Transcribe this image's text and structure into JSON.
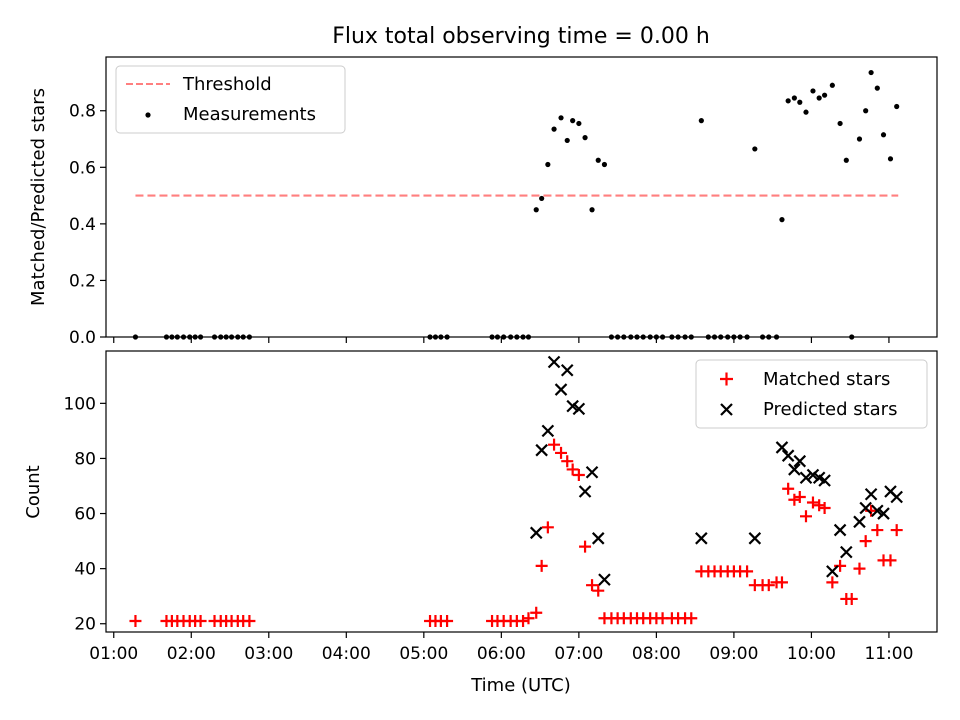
{
  "title": "Flux total observing time = 0.00 h",
  "chart_data": [
    {
      "type": "scatter",
      "ylabel": "Matched/Predicted stars",
      "xlim": [
        0.9,
        11.62
      ],
      "ylim": [
        0.0,
        0.99
      ],
      "yticks": [
        0.0,
        0.2,
        0.4,
        0.6,
        0.8
      ],
      "ytick_labels": [
        "0.0",
        "0.2",
        "0.4",
        "0.6",
        "0.8"
      ],
      "legend_position": "top-left",
      "threshold": {
        "name": "Threshold",
        "y": 0.5,
        "x": [
          1.28,
          11.12
        ],
        "color": "#ff7f7f"
      },
      "series": [
        {
          "name": "Measurements",
          "color": "#000000",
          "x": [
            1.28,
            1.68,
            1.75,
            1.82,
            1.9,
            1.98,
            2.05,
            2.12,
            2.3,
            2.38,
            2.45,
            2.52,
            2.6,
            2.67,
            2.75,
            5.08,
            5.15,
            5.22,
            5.3,
            5.88,
            5.95,
            6.03,
            6.12,
            6.2,
            6.28,
            6.35,
            6.45,
            6.52,
            6.6,
            6.68,
            6.77,
            6.85,
            6.92,
            7.0,
            7.08,
            7.17,
            7.25,
            7.33,
            7.42,
            7.5,
            7.58,
            7.67,
            7.75,
            7.83,
            7.92,
            8.0,
            8.08,
            8.2,
            8.28,
            8.37,
            8.45,
            8.58,
            8.67,
            8.75,
            8.83,
            8.92,
            9.0,
            9.08,
            9.17,
            9.27,
            9.37,
            9.45,
            9.55,
            9.62,
            9.7,
            9.78,
            9.85,
            9.93,
            10.02,
            10.1,
            10.17,
            10.27,
            10.37,
            10.45,
            10.52,
            10.62,
            10.7,
            10.77,
            10.85,
            10.93,
            11.02,
            11.1
          ],
          "y": [
            0,
            0,
            0,
            0,
            0,
            0,
            0,
            0,
            0,
            0,
            0,
            0,
            0,
            0,
            0,
            0,
            0,
            0,
            0,
            0,
            0,
            0,
            0,
            0,
            0,
            0,
            0.45,
            0.49,
            0.61,
            0.735,
            0.775,
            0.695,
            0.765,
            0.755,
            0.705,
            0.45,
            0.625,
            0.61,
            0,
            0,
            0,
            0,
            0,
            0,
            0,
            0,
            0,
            0,
            0,
            0,
            0,
            0.765,
            0,
            0,
            0,
            0,
            0,
            0,
            0,
            0.665,
            0,
            0,
            0,
            0.415,
            0.835,
            0.845,
            0.83,
            0.795,
            0.87,
            0.845,
            0.855,
            0.89,
            0.755,
            0.625,
            0,
            0.7,
            0.8,
            0.935,
            0.88,
            0.715,
            0.63,
            0.815
          ]
        }
      ]
    },
    {
      "type": "scatter",
      "xlabel": "Time (UTC)",
      "ylabel": "Count",
      "xlim": [
        0.9,
        11.62
      ],
      "ylim": [
        17,
        119
      ],
      "xticks": [
        1,
        2,
        3,
        4,
        5,
        6,
        7,
        8,
        9,
        10,
        11
      ],
      "xtick_labels": [
        "01:00",
        "02:00",
        "03:00",
        "04:00",
        "05:00",
        "06:00",
        "07:00",
        "08:00",
        "09:00",
        "10:00",
        "11:00"
      ],
      "yticks": [
        20,
        40,
        60,
        80,
        100
      ],
      "ytick_labels": [
        "20",
        "40",
        "60",
        "80",
        "100"
      ],
      "legend_position": "top-right",
      "series": [
        {
          "name": "Matched stars",
          "marker": "plus",
          "color": "#ff0000",
          "x": [
            1.28,
            1.68,
            1.75,
            1.82,
            1.9,
            1.98,
            2.05,
            2.12,
            2.3,
            2.38,
            2.45,
            2.52,
            2.6,
            2.67,
            2.75,
            5.08,
            5.15,
            5.22,
            5.3,
            5.88,
            5.95,
            6.03,
            6.12,
            6.2,
            6.28,
            6.35,
            6.45,
            6.52,
            6.6,
            6.68,
            6.77,
            6.85,
            6.92,
            7.0,
            7.08,
            7.17,
            7.25,
            7.33,
            7.42,
            7.5,
            7.58,
            7.67,
            7.75,
            7.83,
            7.92,
            8.0,
            8.08,
            8.2,
            8.28,
            8.37,
            8.45,
            8.58,
            8.67,
            8.75,
            8.83,
            8.92,
            9.0,
            9.08,
            9.17,
            9.27,
            9.37,
            9.45,
            9.55,
            9.62,
            9.7,
            9.78,
            9.85,
            9.93,
            10.02,
            10.1,
            10.17,
            10.27,
            10.37,
            10.45,
            10.52,
            10.62,
            10.7,
            10.77,
            10.85,
            10.93,
            11.02,
            11.1
          ],
          "y": [
            21,
            21,
            21,
            21,
            21,
            21,
            21,
            21,
            21,
            21,
            21,
            21,
            21,
            21,
            21,
            21,
            21,
            21,
            21,
            21,
            21,
            21,
            21,
            21,
            21,
            22,
            24,
            41,
            55,
            85,
            82,
            79,
            76,
            74,
            48,
            34,
            32,
            22,
            22,
            22,
            22,
            22,
            22,
            22,
            22,
            22,
            22,
            22,
            22,
            22,
            22,
            39,
            39,
            39,
            39,
            39,
            39,
            39,
            39,
            34,
            34,
            34,
            35,
            35,
            69,
            65,
            66,
            59,
            64,
            63,
            62,
            35,
            41,
            29,
            29,
            40,
            50,
            61,
            54,
            43,
            43,
            54
          ]
        },
        {
          "name": "Predicted stars",
          "marker": "x",
          "color": "#000000",
          "x": [
            6.45,
            6.52,
            6.6,
            6.68,
            6.77,
            6.85,
            6.92,
            7.0,
            7.08,
            7.17,
            7.25,
            7.33,
            8.58,
            9.27,
            9.62,
            9.7,
            9.78,
            9.85,
            9.93,
            10.02,
            10.1,
            10.17,
            10.27,
            10.37,
            10.45,
            10.62,
            10.7,
            10.77,
            10.85,
            10.93,
            11.02,
            11.1
          ],
          "y": [
            53,
            83,
            90,
            115,
            105,
            112,
            99,
            98,
            68,
            75,
            51,
            36,
            51,
            51,
            84,
            81,
            76,
            79,
            73,
            74,
            73,
            72,
            39,
            54,
            46,
            57,
            62,
            67,
            61,
            60,
            68,
            66
          ]
        }
      ]
    }
  ]
}
